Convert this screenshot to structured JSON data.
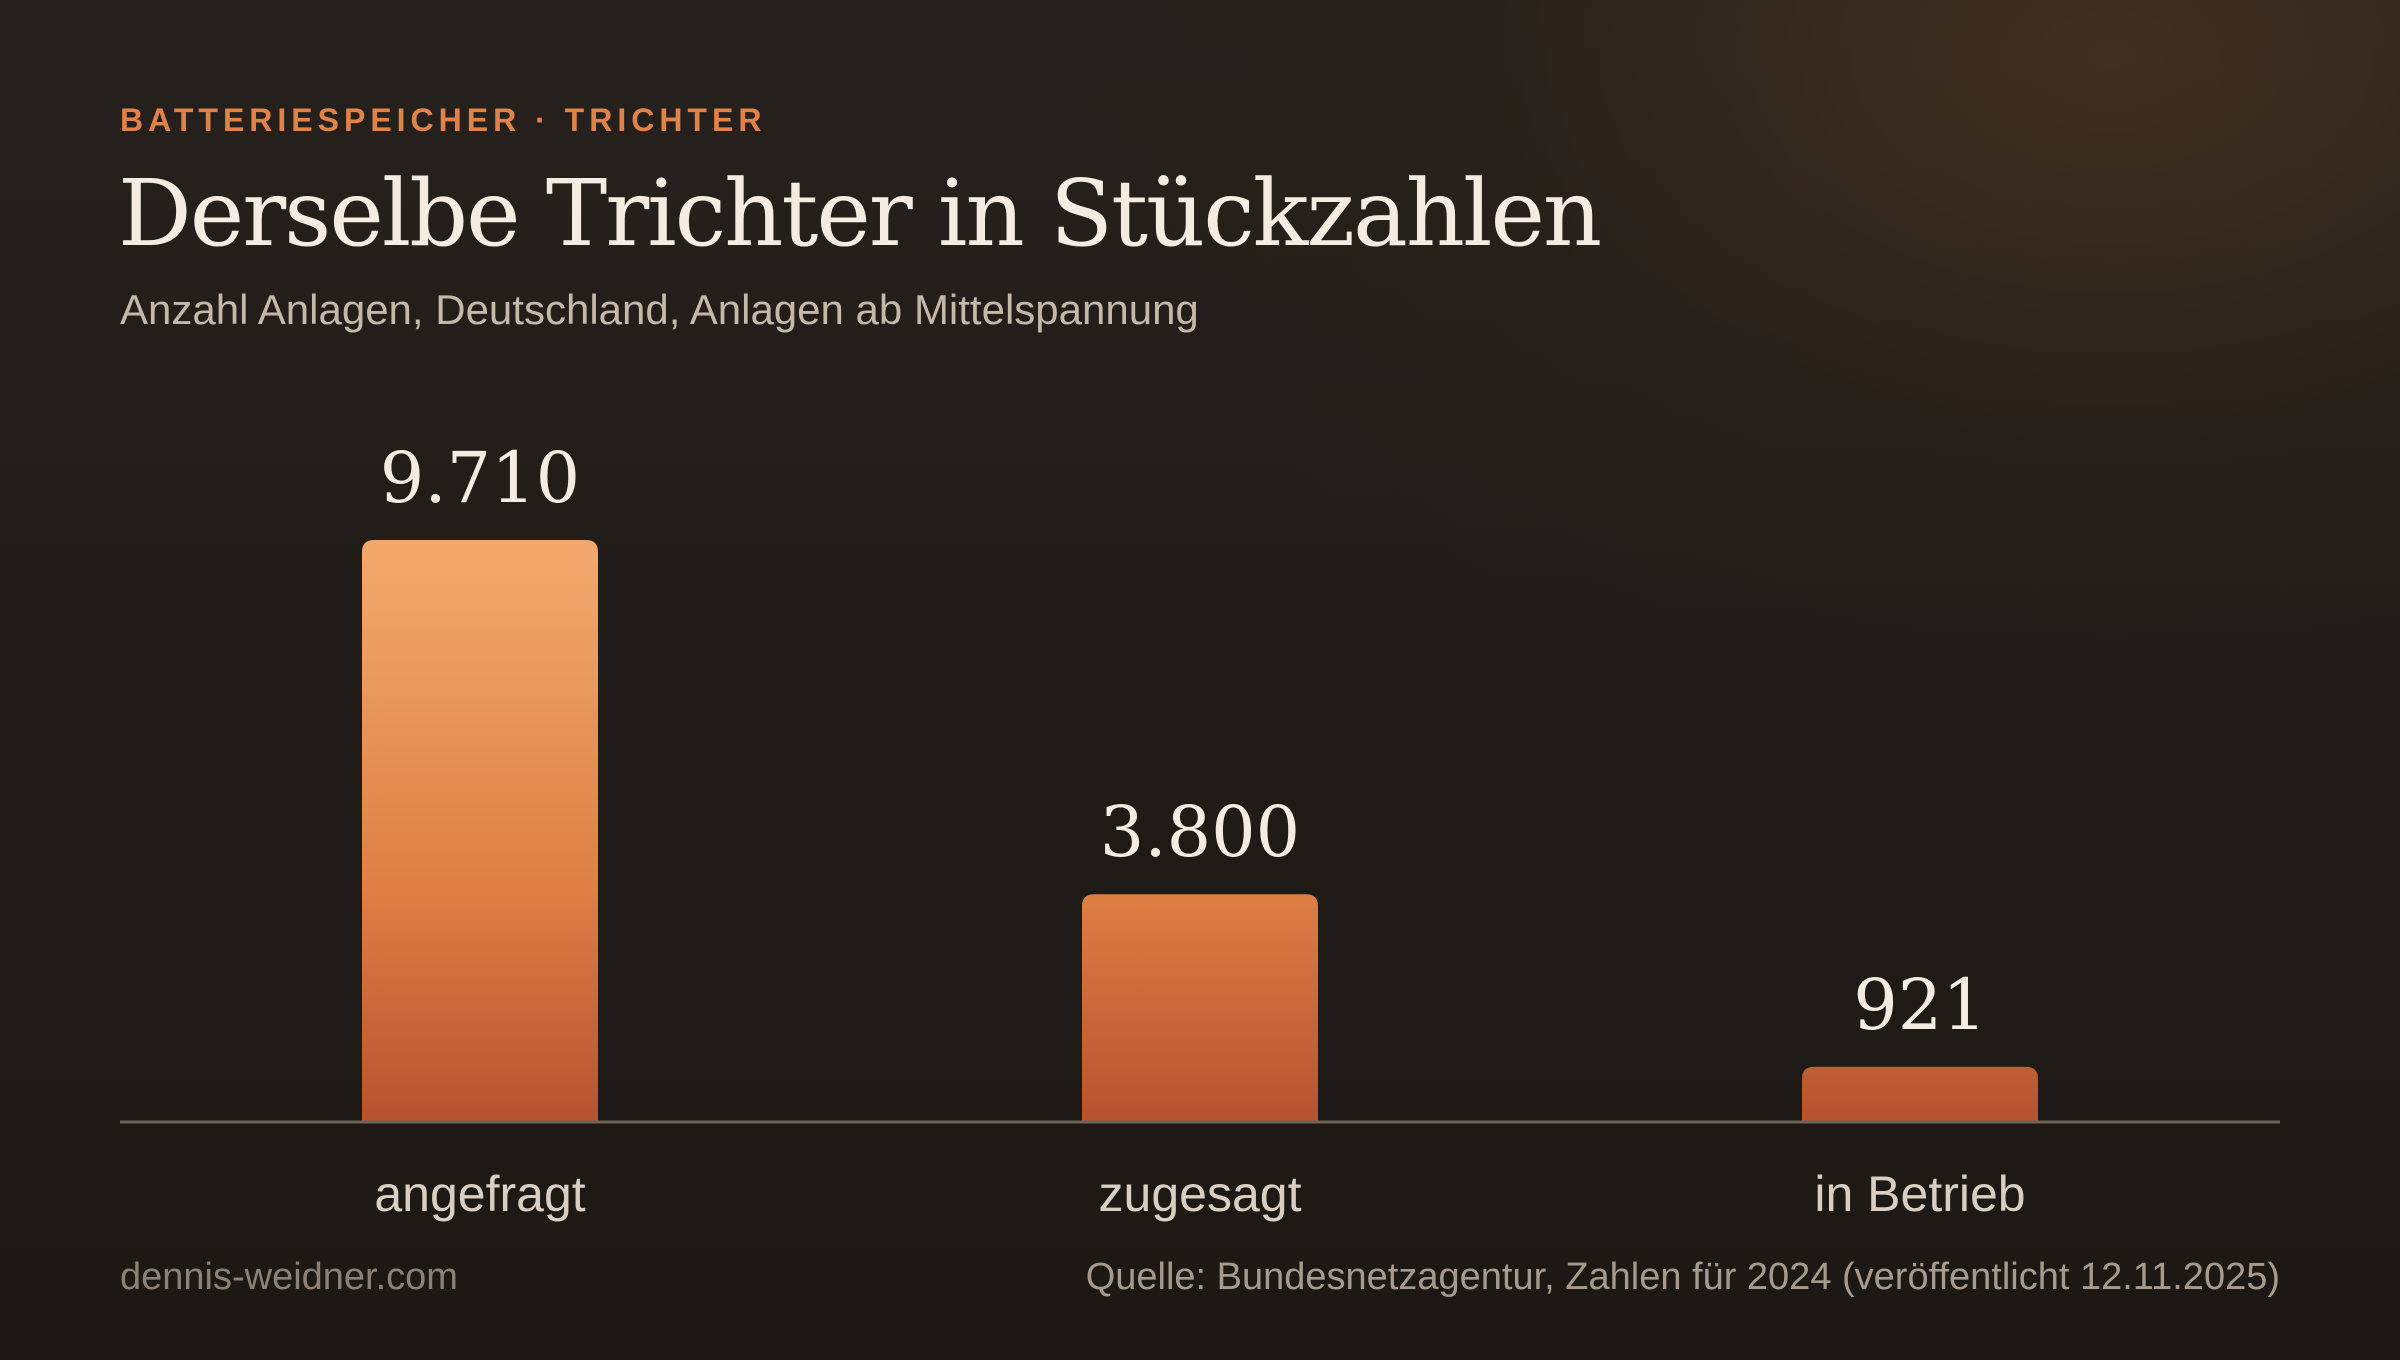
{
  "header": {
    "eyebrow": "BATTERIESPEICHER · TRICHTER",
    "title": "Derselbe Trichter in Stückzahlen",
    "subtitle": "Anzahl Anlagen, Deutschland, Anlagen ab Mittelspannung"
  },
  "footer": {
    "site": "dennis-weidner.com",
    "source": "Quelle: Bundesnetzagentur, Zahlen für 2024 (veröffentlicht 12.11.2025)"
  },
  "colors": {
    "accent": "#e0834a",
    "bar_light": "#f2aa6c",
    "bar_mid": "#de7f45",
    "bar_dark": "#b5532f",
    "baseline": "#6e6458",
    "value_label": "#f4ece1",
    "category_label": "#d8cfc2"
  },
  "chart_data": {
    "type": "bar",
    "categories": [
      "angefragt",
      "zugesagt",
      "in Betrieb"
    ],
    "values": [
      9710,
      3800,
      921
    ],
    "value_labels": [
      "9.710",
      "3.800",
      "921"
    ],
    "ylim": [
      0,
      9710
    ],
    "grid": false,
    "legend": "none"
  }
}
